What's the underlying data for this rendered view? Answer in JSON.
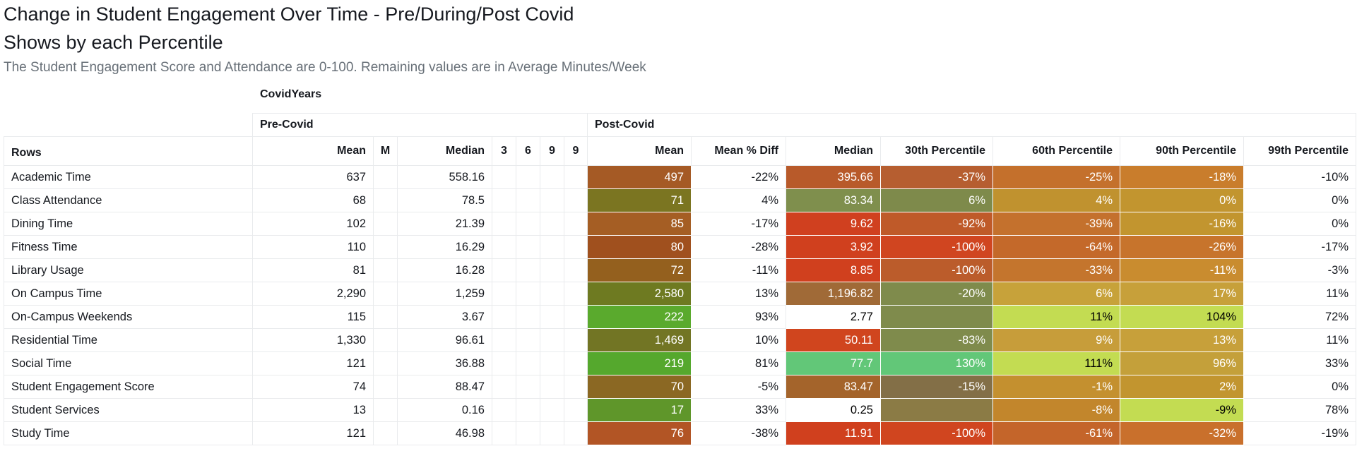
{
  "title_line1": "Change in Student Engagement Over Time - Pre/During/Post Covid",
  "title_line2": "Shows by each Percentile",
  "subtitle": "The Student Engagement Score and Attendance are 0-100. Remaining values are in Average Minutes/Week",
  "column_field_label": "CovidYears",
  "row_field_label": "Rows",
  "groups": [
    {
      "name": "Pre-Covid",
      "columns": [
        "Mean",
        "M",
        "Median",
        "3",
        "6",
        "9",
        "9"
      ]
    },
    {
      "name": "Post-Covid",
      "columns": [
        "Mean",
        "Mean % Diff",
        "Median",
        "30th Percentile",
        "60th Percentile",
        "90th Percentile",
        "99th Percentile"
      ]
    }
  ],
  "chart_data": {
    "type": "table",
    "title": "Change in Student Engagement Over Time - Pre/During/Post Covid",
    "subtitle": "Shows by each Percentile",
    "rows": [
      {
        "name": "Academic Time",
        "pre": [
          "637",
          "",
          "558.16",
          "",
          "",
          "",
          ""
        ],
        "post": [
          "497",
          "-22%",
          "395.66",
          "-37%",
          "-25%",
          "-18%",
          "-10%"
        ]
      },
      {
        "name": "Class Attendance",
        "pre": [
          "68",
          "",
          "78.5",
          "",
          "",
          "",
          ""
        ],
        "post": [
          "71",
          "4%",
          "83.34",
          "6%",
          "4%",
          "0%",
          "0%"
        ]
      },
      {
        "name": "Dining Time",
        "pre": [
          "102",
          "",
          "21.39",
          "",
          "",
          "",
          ""
        ],
        "post": [
          "85",
          "-17%",
          "9.62",
          "-92%",
          "-39%",
          "-16%",
          "0%"
        ]
      },
      {
        "name": "Fitness Time",
        "pre": [
          "110",
          "",
          "16.29",
          "",
          "",
          "",
          ""
        ],
        "post": [
          "80",
          "-28%",
          "3.92",
          "-100%",
          "-64%",
          "-26%",
          "-17%"
        ]
      },
      {
        "name": "Library Usage",
        "pre": [
          "81",
          "",
          "16.28",
          "",
          "",
          "",
          ""
        ],
        "post": [
          "72",
          "-11%",
          "8.85",
          "-100%",
          "-33%",
          "-11%",
          "-3%"
        ]
      },
      {
        "name": "On Campus Time",
        "pre": [
          "2,290",
          "",
          "1,259",
          "",
          "",
          "",
          ""
        ],
        "post": [
          "2,580",
          "13%",
          "1,196.82",
          "-20%",
          "6%",
          "17%",
          "11%"
        ]
      },
      {
        "name": "On-Campus Weekends",
        "pre": [
          "115",
          "",
          "3.67",
          "",
          "",
          "",
          ""
        ],
        "post": [
          "222",
          "93%",
          "2.77",
          "",
          "11%",
          "104%",
          "72%"
        ]
      },
      {
        "name": "Residential Time",
        "pre": [
          "1,330",
          "",
          "96.61",
          "",
          "",
          "",
          ""
        ],
        "post": [
          "1,469",
          "10%",
          "50.11",
          "-83%",
          "9%",
          "13%",
          "11%"
        ]
      },
      {
        "name": "Social Time",
        "pre": [
          "121",
          "",
          "36.88",
          "",
          "",
          "",
          ""
        ],
        "post": [
          "219",
          "81%",
          "77.7",
          "130%",
          "111%",
          "96%",
          "33%"
        ]
      },
      {
        "name": "Student Engagement Score",
        "pre": [
          "74",
          "",
          "88.47",
          "",
          "",
          "",
          ""
        ],
        "post": [
          "70",
          "-5%",
          "83.47",
          "-15%",
          "-1%",
          "2%",
          "0%"
        ]
      },
      {
        "name": "Student Services",
        "pre": [
          "13",
          "",
          "0.16",
          "",
          "",
          "",
          ""
        ],
        "post": [
          "17",
          "33%",
          "0.25",
          "",
          "-8%",
          "-9%",
          "78%"
        ]
      },
      {
        "name": "Study Time",
        "pre": [
          "121",
          "",
          "46.98",
          "",
          "",
          "",
          ""
        ],
        "post": [
          "76",
          "-38%",
          "11.91",
          "-100%",
          "-61%",
          "-32%",
          "-19%"
        ]
      }
    ],
    "heatmap": {
      "colored_columns": [
        "Mean % Diff",
        "30th Percentile",
        "60th Percentile",
        "90th Percentile",
        "99th Percentile"
      ],
      "cell_colors": [
        [
          "#a55a25",
          null,
          "#b85a2a",
          "#b65e30",
          "#c4702c",
          "#c97d2c"
        ],
        [
          "#7b7521",
          null,
          "#7f8f4d",
          "#7e8a4b",
          "#c0922f",
          "#c2952f"
        ],
        [
          "#a55e24",
          null,
          "#d0401f",
          "#bf5a29",
          "#c4712d",
          "#c2952f"
        ],
        [
          "#a0501e",
          null,
          "#d0401e",
          "#d04520",
          "#c4692a",
          "#c7742c"
        ],
        [
          "#94601e",
          null,
          "#d0401e",
          "#bb5c2b",
          "#c4752d",
          "#c98c2f"
        ],
        [
          "#6e7a21",
          null,
          "#a06a37",
          "#7f8b4c",
          "#c7a23a",
          "#c7a03a"
        ],
        [
          "#5aaa2d",
          null,
          "#ffffff",
          "#7f8b4c",
          "#c3dc52",
          "#c3dc52"
        ],
        [
          "#727524",
          null,
          "#d0451e",
          "#7f8b4c",
          "#c79d3a",
          "#c7a03a"
        ],
        [
          "#55a82d",
          null,
          "#62c778",
          "#62c778",
          "#c3dc52",
          "#c4a03a"
        ],
        [
          "#8b6823",
          null,
          "#a4642b",
          "#836f47",
          "#c4902f",
          "#c2952f"
        ],
        [
          "#5f962a",
          null,
          "#ffffff",
          "#8b7b45",
          "#c2862c",
          "#c3dc52"
        ],
        [
          "#b25525",
          null,
          "#d0401e",
          "#d0451f",
          "#c4652a",
          "#c9702c"
        ]
      ],
      "dark_text_colors": [
        "#000000"
      ]
    }
  }
}
